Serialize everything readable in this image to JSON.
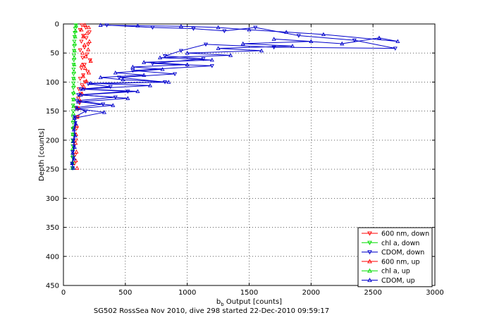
{
  "chart_data": {
    "type": "scatter",
    "title": "",
    "xlabel": "b",
    "xlabel_sub": "b",
    "xlabel_rest": " Output [counts]",
    "ylabel": "Depth [counts]",
    "caption": "SG502 RossSea Nov 2010, dive 298 started 22-Dec-2010 09:59:17",
    "xlim": [
      0,
      3000
    ],
    "ylim": [
      0,
      450
    ],
    "y_reversed": true,
    "grid": true,
    "legend_position": "bottom-right",
    "x_ticks": [
      0,
      500,
      1000,
      1500,
      2000,
      2500,
      3000
    ],
    "y_ticks": [
      0,
      50,
      100,
      150,
      200,
      250,
      300,
      350,
      400,
      450
    ],
    "series": [
      {
        "name": "600 nm, down",
        "color": "#ff0000",
        "marker": "triangle-down",
        "line": false,
        "points": [
          [
            150,
            2
          ],
          [
            180,
            6
          ],
          [
            135,
            10
          ],
          [
            210,
            14
          ],
          [
            160,
            20
          ],
          [
            185,
            24
          ],
          [
            145,
            30
          ],
          [
            200,
            35
          ],
          [
            170,
            40
          ],
          [
            135,
            45
          ],
          [
            190,
            52
          ],
          [
            155,
            58
          ],
          [
            215,
            62
          ],
          [
            170,
            70
          ],
          [
            145,
            76
          ],
          [
            195,
            82
          ],
          [
            160,
            88
          ],
          [
            135,
            94
          ],
          [
            175,
            100
          ],
          [
            150,
            105
          ],
          [
            125,
            112
          ],
          [
            140,
            120
          ],
          [
            120,
            128
          ],
          [
            130,
            136
          ],
          [
            110,
            145
          ],
          [
            115,
            160
          ],
          [
            105,
            180
          ],
          [
            100,
            200
          ],
          [
            95,
            225
          ],
          [
            90,
            240
          ]
        ]
      },
      {
        "name": "chl a, down",
        "color": "#00dd00",
        "marker": "triangle-down",
        "line": false,
        "points": [
          [
            100,
            2
          ],
          [
            95,
            8
          ],
          [
            92,
            15
          ],
          [
            90,
            22
          ],
          [
            88,
            30
          ],
          [
            87,
            38
          ],
          [
            86,
            46
          ],
          [
            85,
            54
          ],
          [
            84,
            62
          ],
          [
            83,
            70
          ],
          [
            82,
            78
          ],
          [
            82,
            86
          ],
          [
            81,
            94
          ],
          [
            80,
            102
          ],
          [
            80,
            110
          ],
          [
            79,
            120
          ],
          [
            79,
            130
          ],
          [
            78,
            140
          ],
          [
            78,
            150
          ],
          [
            77,
            160
          ],
          [
            77,
            170
          ],
          [
            76,
            180
          ],
          [
            76,
            190
          ],
          [
            75,
            200
          ],
          [
            75,
            210
          ],
          [
            74,
            220
          ],
          [
            74,
            230
          ],
          [
            73,
            240
          ],
          [
            73,
            248
          ]
        ]
      },
      {
        "name": "CDOM, down",
        "color": "#0000cc",
        "marker": "triangle-down",
        "line": true,
        "points": [
          [
            350,
            2
          ],
          [
            720,
            6
          ],
          [
            1050,
            8
          ],
          [
            1300,
            12
          ],
          [
            1550,
            6
          ],
          [
            1900,
            20
          ],
          [
            2350,
            28
          ],
          [
            2680,
            42
          ],
          [
            1700,
            40
          ],
          [
            1150,
            35
          ],
          [
            950,
            46
          ],
          [
            820,
            55
          ],
          [
            1130,
            60
          ],
          [
            720,
            68
          ],
          [
            1200,
            72
          ],
          [
            560,
            80
          ],
          [
            900,
            86
          ],
          [
            450,
            92
          ],
          [
            820,
            100
          ],
          [
            200,
            103
          ],
          [
            380,
            108
          ],
          [
            140,
            112
          ],
          [
            520,
            116
          ],
          [
            120,
            122
          ],
          [
            420,
            126
          ],
          [
            110,
            132
          ],
          [
            320,
            138
          ],
          [
            100,
            144
          ],
          [
            180,
            150
          ],
          [
            90,
            160
          ],
          [
            95,
            170
          ],
          [
            85,
            180
          ],
          [
            90,
            190
          ],
          [
            80,
            200
          ],
          [
            85,
            210
          ],
          [
            75,
            220
          ],
          [
            80,
            230
          ],
          [
            70,
            240
          ],
          [
            75,
            248
          ]
        ]
      },
      {
        "name": "600 nm, up",
        "color": "#ff0000",
        "marker": "triangle-up",
        "line": false,
        "points": [
          [
            110,
            248
          ],
          [
            100,
            235
          ],
          [
            105,
            220
          ],
          [
            98,
            205
          ],
          [
            102,
            190
          ],
          [
            108,
            175
          ],
          [
            112,
            160
          ],
          [
            125,
            145
          ],
          [
            135,
            132
          ],
          [
            150,
            120
          ],
          [
            165,
            108
          ],
          [
            185,
            98
          ],
          [
            160,
            90
          ],
          [
            205,
            84
          ],
          [
            175,
            76
          ],
          [
            150,
            70
          ],
          [
            220,
            64
          ],
          [
            180,
            56
          ],
          [
            155,
            50
          ],
          [
            200,
            44
          ],
          [
            170,
            36
          ],
          [
            210,
            30
          ],
          [
            160,
            22
          ],
          [
            190,
            16
          ],
          [
            145,
            10
          ],
          [
            205,
            6
          ],
          [
            175,
            2
          ]
        ]
      },
      {
        "name": "chl a, up",
        "color": "#00dd00",
        "marker": "triangle-up",
        "line": false,
        "points": [
          [
            72,
            248
          ],
          [
            73,
            238
          ],
          [
            74,
            226
          ],
          [
            75,
            214
          ],
          [
            76,
            202
          ],
          [
            77,
            190
          ],
          [
            78,
            178
          ],
          [
            79,
            166
          ],
          [
            80,
            154
          ],
          [
            81,
            142
          ],
          [
            82,
            130
          ],
          [
            83,
            118
          ],
          [
            84,
            106
          ],
          [
            85,
            94
          ],
          [
            86,
            82
          ],
          [
            87,
            70
          ],
          [
            88,
            58
          ],
          [
            90,
            46
          ],
          [
            92,
            34
          ],
          [
            95,
            22
          ],
          [
            98,
            12
          ],
          [
            102,
            3
          ]
        ]
      },
      {
        "name": "CDOM, up",
        "color": "#0000cc",
        "marker": "triangle-up",
        "line": true,
        "points": [
          [
            80,
            248
          ],
          [
            70,
            240
          ],
          [
            85,
            232
          ],
          [
            75,
            222
          ],
          [
            90,
            212
          ],
          [
            80,
            202
          ],
          [
            95,
            192
          ],
          [
            85,
            182
          ],
          [
            100,
            172
          ],
          [
            90,
            162
          ],
          [
            330,
            152
          ],
          [
            110,
            146
          ],
          [
            400,
            140
          ],
          [
            120,
            134
          ],
          [
            520,
            128
          ],
          [
            140,
            122
          ],
          [
            600,
            116
          ],
          [
            160,
            112
          ],
          [
            700,
            106
          ],
          [
            220,
            102
          ],
          [
            850,
            100
          ],
          [
            480,
            96
          ],
          [
            300,
            92
          ],
          [
            650,
            88
          ],
          [
            420,
            84
          ],
          [
            800,
            78
          ],
          [
            560,
            74
          ],
          [
            1000,
            70
          ],
          [
            650,
            66
          ],
          [
            1200,
            62
          ],
          [
            780,
            58
          ],
          [
            1350,
            54
          ],
          [
            1000,
            50
          ],
          [
            1600,
            46
          ],
          [
            1250,
            42
          ],
          [
            1850,
            38
          ],
          [
            1450,
            34
          ],
          [
            2000,
            30
          ],
          [
            1700,
            26
          ],
          [
            2250,
            34
          ],
          [
            2550,
            24
          ],
          [
            2700,
            30
          ],
          [
            2100,
            18
          ],
          [
            1800,
            14
          ],
          [
            1500,
            10
          ],
          [
            1250,
            6
          ],
          [
            950,
            4
          ],
          [
            600,
            3
          ],
          [
            300,
            2
          ]
        ]
      }
    ]
  }
}
